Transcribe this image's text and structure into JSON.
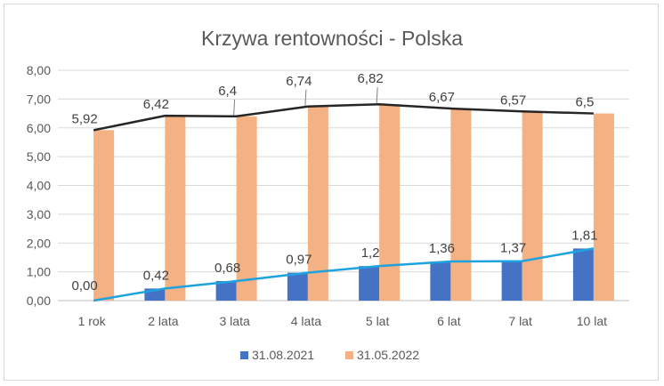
{
  "chart_data": {
    "type": "bar",
    "title": "Krzywa rentowności - Polska",
    "categories": [
      "1 rok",
      "2 lata",
      "3 lata",
      "4 lata",
      "5 lat",
      "6 lat",
      "7 lat",
      "10 lat"
    ],
    "series": [
      {
        "name": "31.08.2021",
        "values": [
          0.0,
          0.42,
          0.68,
          0.97,
          1.2,
          1.36,
          1.37,
          1.81
        ],
        "labels": [
          "0,00",
          "0,42",
          "0,68",
          "0,97",
          "1,2",
          "1,36",
          "1,37",
          "1,81"
        ],
        "color": "#4472c4",
        "line_color": "#1fa3e0"
      },
      {
        "name": "31.05.2022",
        "values": [
          5.92,
          6.42,
          6.4,
          6.74,
          6.82,
          6.67,
          6.57,
          6.5
        ],
        "labels": [
          "5,92",
          "6,42",
          "6,4",
          "6,74",
          "6,82",
          "6,67",
          "6,57",
          "6,5"
        ],
        "color": "#f4b183",
        "line_color": "#262626"
      }
    ],
    "ylim": [
      0,
      8
    ],
    "yticks": [
      "0,00",
      "1,00",
      "2,00",
      "3,00",
      "4,00",
      "5,00",
      "6,00",
      "7,00",
      "8,00"
    ],
    "grid": true,
    "legend": "bottom"
  }
}
